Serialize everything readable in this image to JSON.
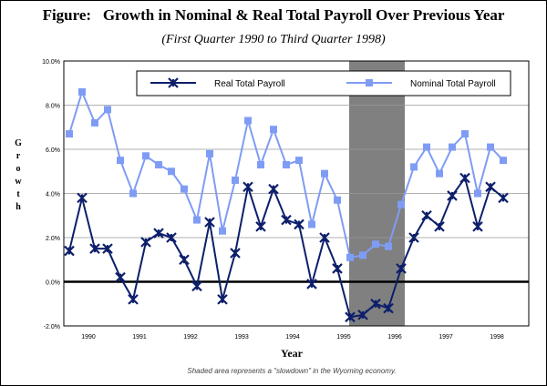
{
  "chart_data": {
    "type": "line",
    "title": "Figure:   Growth in Nominal & Real Total Payroll Over Previous Year",
    "subtitle": "(First Quarter 1990 to Third Quarter 1998)",
    "x_label": "Year",
    "y_label": "Growth",
    "annotation": "Shaded area represents a \"slowdown\" in the Wyoming economy.",
    "categories": [
      null,
      "1990",
      null,
      null,
      null,
      "1991",
      null,
      null,
      null,
      "1992",
      null,
      null,
      null,
      "1993",
      null,
      null,
      null,
      "1994",
      null,
      null,
      null,
      "1995",
      null,
      null,
      null,
      "1996",
      null,
      null,
      null,
      "1997",
      null,
      null,
      null,
      "1998",
      null
    ],
    "series": [
      {
        "name": "Real Total Payroll",
        "color": "#0d1f6b",
        "marker": "star",
        "values": [
          1.4,
          3.8,
          1.5,
          1.5,
          0.2,
          -0.8,
          1.8,
          2.2,
          2.0,
          1.0,
          -0.2,
          2.7,
          -0.8,
          1.3,
          4.3,
          2.5,
          4.2,
          2.8,
          2.6,
          -0.1,
          2.0,
          0.6,
          -1.6,
          -1.5,
          -1.0,
          -1.2,
          0.6,
          2.0,
          3.0,
          2.5,
          3.9,
          4.7,
          2.5,
          4.3,
          3.8
        ]
      },
      {
        "name": "Nominal Total Payroll",
        "color": "#7f9cf5",
        "marker": "square",
        "values": [
          6.7,
          8.6,
          7.2,
          7.8,
          5.5,
          4.0,
          5.7,
          5.3,
          5.0,
          4.2,
          2.8,
          5.8,
          2.3,
          4.6,
          7.3,
          5.3,
          6.9,
          5.3,
          5.5,
          2.6,
          4.9,
          3.7,
          1.1,
          1.2,
          1.7,
          1.6,
          3.5,
          5.2,
          6.1,
          4.9,
          6.1,
          6.7,
          4.0,
          6.1,
          5.5
        ]
      }
    ],
    "ylim": [
      -2,
      10
    ],
    "yticks": [
      {
        "value": -2,
        "label": "-2.0%"
      },
      {
        "value": 0,
        "label": "0.0%"
      },
      {
        "value": 2,
        "label": "2.0%"
      },
      {
        "value": 4,
        "label": "4.0%"
      },
      {
        "value": 6,
        "label": "6.0%"
      },
      {
        "value": 8,
        "label": "8.0%"
      },
      {
        "value": 10,
        "label": "10.0%"
      }
    ],
    "grid": true,
    "legend": "top"
  }
}
